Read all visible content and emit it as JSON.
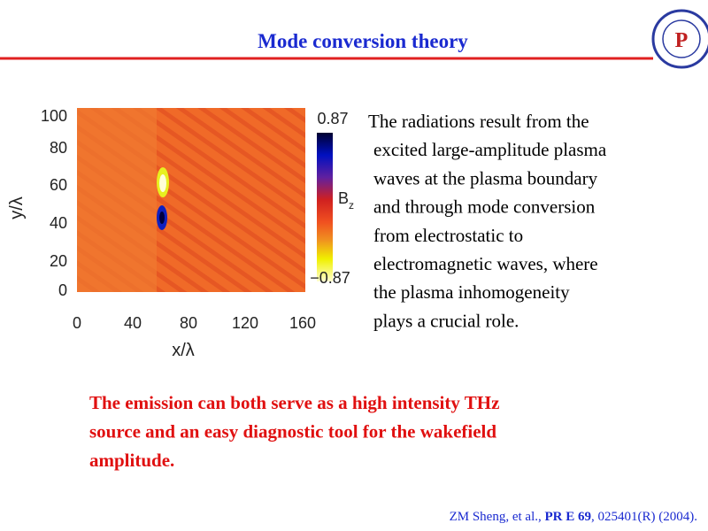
{
  "header": {
    "title": "Mode conversion theory"
  },
  "figure": {
    "y_label": "y/λ",
    "x_label": "x/λ",
    "yticks": [
      "100",
      "80",
      "60",
      "40",
      "20",
      "0"
    ],
    "xticks": [
      "0",
      "40",
      "80",
      "120",
      "160"
    ],
    "colorbar": {
      "max": "0.87",
      "min": "−0.87",
      "label": "B",
      "label_sub": "z"
    }
  },
  "description": {
    "lines": [
      "The radiations result from the",
      "excited large-amplitude plasma",
      "waves at the plasma boundary",
      "and through mode conversion",
      "from electrostatic to",
      "electromagnetic waves, where",
      "the plasma inhomogeneity",
      "plays a crucial role."
    ]
  },
  "highlight": {
    "lines": [
      "The emission can both serve as a high intensity THz",
      "source and an easy diagnostic tool for the wakefield",
      "amplitude."
    ]
  },
  "citation": {
    "authors": "ZM Sheng, et al., ",
    "journal": "PR E 69",
    "rest": ", 025401(R) (2004)."
  }
}
